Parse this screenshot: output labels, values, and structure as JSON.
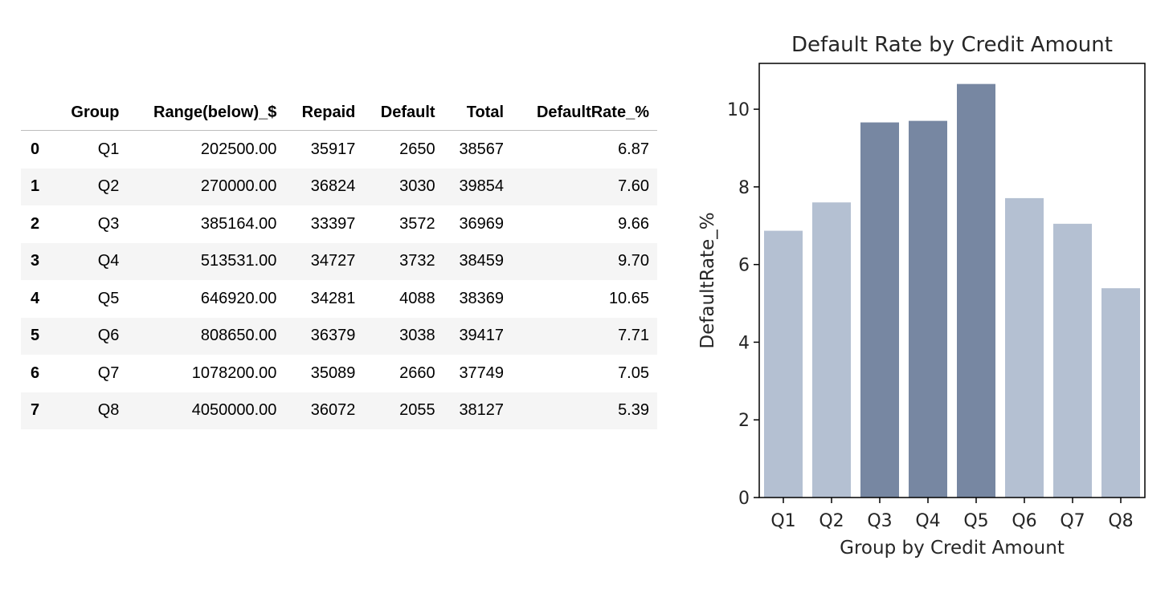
{
  "table": {
    "columns": [
      "",
      "Group",
      "Range(below)_$",
      "Repaid",
      "Default",
      "Total",
      "DefaultRate_%"
    ],
    "rows": [
      [
        "0",
        "Q1",
        "202500.00",
        "35917",
        "2650",
        "38567",
        "6.87"
      ],
      [
        "1",
        "Q2",
        "270000.00",
        "36824",
        "3030",
        "39854",
        "7.60"
      ],
      [
        "2",
        "Q3",
        "385164.00",
        "33397",
        "3572",
        "36969",
        "9.66"
      ],
      [
        "3",
        "Q4",
        "513531.00",
        "34727",
        "3732",
        "38459",
        "9.70"
      ],
      [
        "4",
        "Q5",
        "646920.00",
        "34281",
        "4088",
        "38369",
        "10.65"
      ],
      [
        "5",
        "Q6",
        "808650.00",
        "36379",
        "3038",
        "39417",
        "7.71"
      ],
      [
        "6",
        "Q7",
        "1078200.00",
        "35089",
        "2660",
        "37749",
        "7.05"
      ],
      [
        "7",
        "Q8",
        "4050000.00",
        "36072",
        "2055",
        "38127",
        "5.39"
      ]
    ]
  },
  "chart_data": {
    "type": "bar",
    "title": "Default Rate by Credit Amount",
    "xlabel": "Group by Credit Amount",
    "ylabel": "DefaultRate_%",
    "categories": [
      "Q1",
      "Q2",
      "Q3",
      "Q4",
      "Q5",
      "Q6",
      "Q7",
      "Q8"
    ],
    "values": [
      6.87,
      7.6,
      9.66,
      9.7,
      10.65,
      7.71,
      7.05,
      5.39
    ],
    "ylim": [
      0,
      11.18
    ],
    "yticks": [
      0,
      2,
      4,
      6,
      8,
      10
    ],
    "grid": false,
    "colors": {
      "light": "#b4c0d2",
      "dark": "#7787a2"
    },
    "highlighted": [
      "Q3",
      "Q4",
      "Q5"
    ]
  }
}
